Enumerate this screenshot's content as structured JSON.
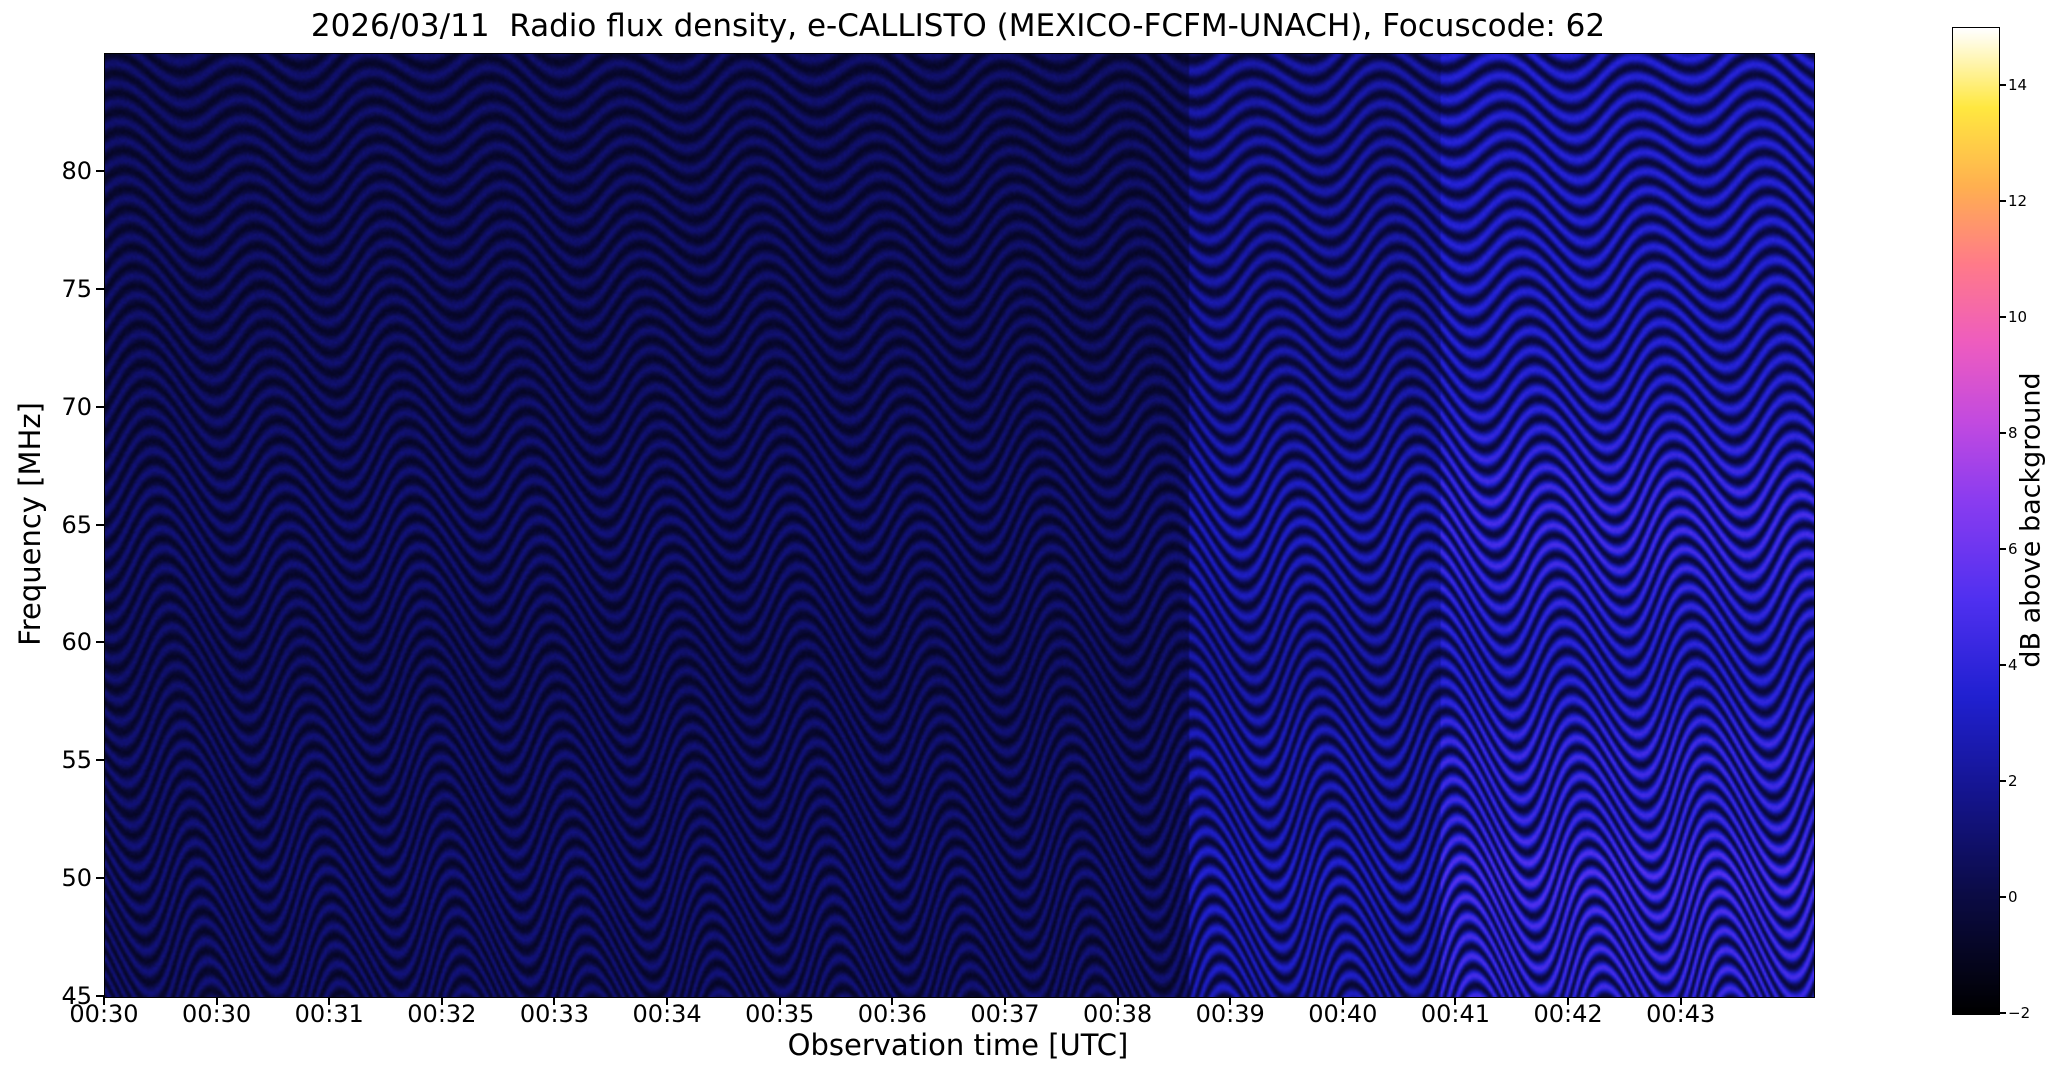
{
  "chart_data": {
    "type": "heatmap",
    "title": "2026/03/11  Radio flux density, e-CALLISTO (MEXICO-FCFM-UNACH), Focuscode: 62",
    "xlabel": "Observation time [UTC]",
    "ylabel": "Frequency [MHz]",
    "x_ticks": [
      "00:30",
      "00:30",
      "00:31",
      "00:32",
      "00:33",
      "00:34",
      "00:35",
      "00:36",
      "00:37",
      "00:38",
      "00:39",
      "00:40",
      "00:41",
      "00:42",
      "00:43"
    ],
    "x_tick_spacing_fraction": 0.0659,
    "y_ticks": [
      "80",
      "75",
      "70",
      "65",
      "60",
      "55",
      "50",
      "45"
    ],
    "y_tick_values": [
      80,
      75,
      70,
      65,
      60,
      55,
      50,
      45
    ],
    "y_range_mhz": [
      45,
      85
    ],
    "grid": false,
    "legend": "none",
    "colorbar": {
      "label": "dB above background",
      "tick_labels": [
        "14",
        "12",
        "10",
        "8",
        "6",
        "4",
        "2",
        "0",
        "−2"
      ],
      "tick_values": [
        14,
        12,
        10,
        8,
        6,
        4,
        2,
        0,
        -2
      ],
      "range": [
        -2,
        15
      ],
      "colormap_stops": [
        [
          0.0,
          "#000000"
        ],
        [
          0.12,
          "#0b0b45"
        ],
        [
          0.22,
          "#14148c"
        ],
        [
          0.32,
          "#2020d0"
        ],
        [
          0.42,
          "#5030f0"
        ],
        [
          0.52,
          "#8a3cf0"
        ],
        [
          0.6,
          "#c24ae0"
        ],
        [
          0.68,
          "#ee5cc0"
        ],
        [
          0.76,
          "#ff7a8a"
        ],
        [
          0.84,
          "#ffb050"
        ],
        [
          0.92,
          "#ffe840"
        ],
        [
          1.0,
          "#ffffff"
        ]
      ]
    },
    "heatmap_model": {
      "description": "Wavy interference fringes (~0.85 MHz vertical spacing) undulating in time across 45-85 MHz; background noise level steps up in two stages near 00:38.7 and 00:40.8, with brighter blue/magenta fringes around 46, 50, 55 and 65 MHz in the elevated regions.",
      "fringe_spacing_mhz": 0.85,
      "wave_cycles_x": 13.5,
      "wave_amp_base": 0.8,
      "wave_amp_slope": 0.045,
      "skew_cycles_per_mhz": 0.02,
      "secondary_wobble": 0.5,
      "secondary_cycles_x": 5.3,
      "noise": 0.35,
      "regions": [
        {
          "from": 0.0,
          "to": 0.635,
          "base": -0.8,
          "contrast": 1.8,
          "boost": 0.25,
          "label": "quiet"
        },
        {
          "from": 0.635,
          "to": 0.782,
          "base": -0.5,
          "contrast": 3.0,
          "boost": 0.7,
          "label": "elevated"
        },
        {
          "from": 0.782,
          "to": 1.0,
          "base": -0.3,
          "contrast": 4.0,
          "boost": 1.0,
          "label": "strong"
        }
      ],
      "freq_boosts_db": [
        {
          "center": 46,
          "sigma": 2.0,
          "amp": 1.0
        },
        {
          "center": 50,
          "sigma": 2.5,
          "amp": 1.5
        },
        {
          "center": 55,
          "sigma": 2.5,
          "amp": 0.9
        },
        {
          "center": 65,
          "sigma": 4.0,
          "amp": 1.1
        }
      ]
    }
  }
}
